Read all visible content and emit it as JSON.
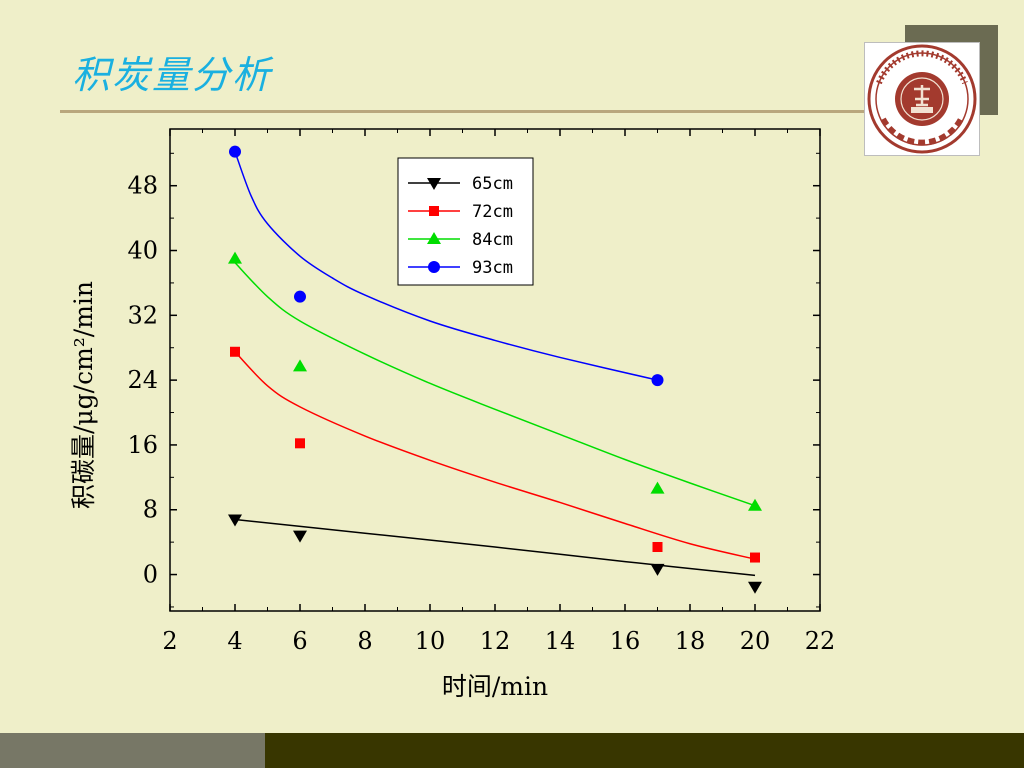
{
  "slide": {
    "title": "积炭量分析"
  },
  "chart_data": {
    "type": "scatter",
    "title": "",
    "xlabel": "时间/min",
    "ylabel": "积碳量/μg/cm²/min",
    "xlim": [
      2,
      22
    ],
    "ylim": [
      -4.5,
      55
    ],
    "x_ticks": [
      2,
      4,
      6,
      8,
      10,
      12,
      14,
      16,
      18,
      20,
      22
    ],
    "y_ticks": [
      0,
      8,
      16,
      24,
      32,
      40,
      48
    ],
    "grid": false,
    "legend_position": "top-center",
    "series": [
      {
        "name": "65cm",
        "marker": "triangle-down",
        "color": "#000000",
        "x": [
          4,
          6,
          17,
          20
        ],
        "y": [
          6.8,
          4.8,
          0.7,
          -1.5
        ],
        "fit": [
          [
            4,
            6.8
          ],
          [
            8,
            5.1
          ],
          [
            12,
            3.4
          ],
          [
            16,
            1.6
          ],
          [
            20,
            -0.1
          ]
        ]
      },
      {
        "name": "72cm",
        "marker": "square",
        "color": "#ff0000",
        "x": [
          4,
          6,
          17,
          20
        ],
        "y": [
          27.5,
          16.2,
          3.4,
          2.1
        ],
        "fit": [
          [
            4,
            27.5
          ],
          [
            5,
            23.3
          ],
          [
            6,
            20.7
          ],
          [
            8,
            17.1
          ],
          [
            10,
            14.1
          ],
          [
            12,
            11.4
          ],
          [
            14,
            8.9
          ],
          [
            16,
            6.3
          ],
          [
            18,
            3.8
          ],
          [
            20,
            1.9
          ]
        ]
      },
      {
        "name": "84cm",
        "marker": "triangle-up",
        "color": "#00dd00",
        "x": [
          4,
          6,
          17,
          20
        ],
        "y": [
          39,
          25.7,
          10.6,
          8.5
        ],
        "fit": [
          [
            4,
            38.5
          ],
          [
            5,
            34.3
          ],
          [
            6,
            31.3
          ],
          [
            8,
            27.2
          ],
          [
            10,
            23.6
          ],
          [
            12,
            20.4
          ],
          [
            14,
            17.3
          ],
          [
            16,
            14.2
          ],
          [
            18,
            11.3
          ],
          [
            20,
            8.5
          ]
        ]
      },
      {
        "name": "93cm",
        "marker": "circle",
        "color": "#0000ff",
        "x": [
          4,
          6,
          17
        ],
        "y": [
          52.2,
          34.3,
          24
        ],
        "fit": [
          [
            4,
            52.2
          ],
          [
            4.5,
            46.7
          ],
          [
            5,
            43.3
          ],
          [
            6,
            39.3
          ],
          [
            7,
            36.6
          ],
          [
            8,
            34.5
          ],
          [
            10,
            31.3
          ],
          [
            12,
            28.9
          ],
          [
            14,
            26.8
          ],
          [
            17,
            24
          ]
        ]
      }
    ]
  }
}
